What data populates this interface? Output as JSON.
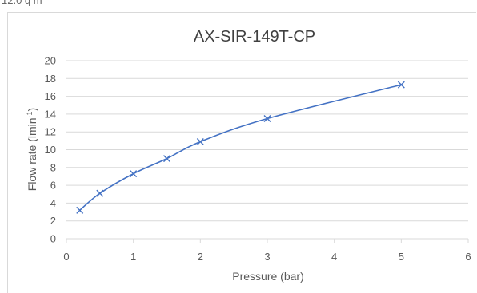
{
  "page": {
    "top_fragment": "12.0 q m"
  },
  "chart_data": {
    "type": "line",
    "title": "AX-SIR-149T-CP",
    "xlabel": "Pressure (bar)",
    "ylabel": {
      "text": "Flow rate (lmin",
      "superscript": "-1",
      "suffix": ")"
    },
    "xlim": [
      0,
      6
    ],
    "ylim": [
      0,
      20
    ],
    "x_ticks": [
      0,
      1,
      2,
      3,
      4,
      5,
      6
    ],
    "y_ticks": [
      0,
      2,
      4,
      6,
      8,
      10,
      12,
      14,
      16,
      18,
      20
    ],
    "grid": true,
    "marker": "x",
    "series": [
      {
        "x": [
          0.2,
          0.5,
          1.0,
          1.5,
          2.0,
          3.0,
          5.0
        ],
        "y": [
          3.2,
          5.1,
          7.3,
          9.0,
          10.9,
          13.5,
          17.3
        ],
        "color": "#4472c4"
      }
    ]
  }
}
